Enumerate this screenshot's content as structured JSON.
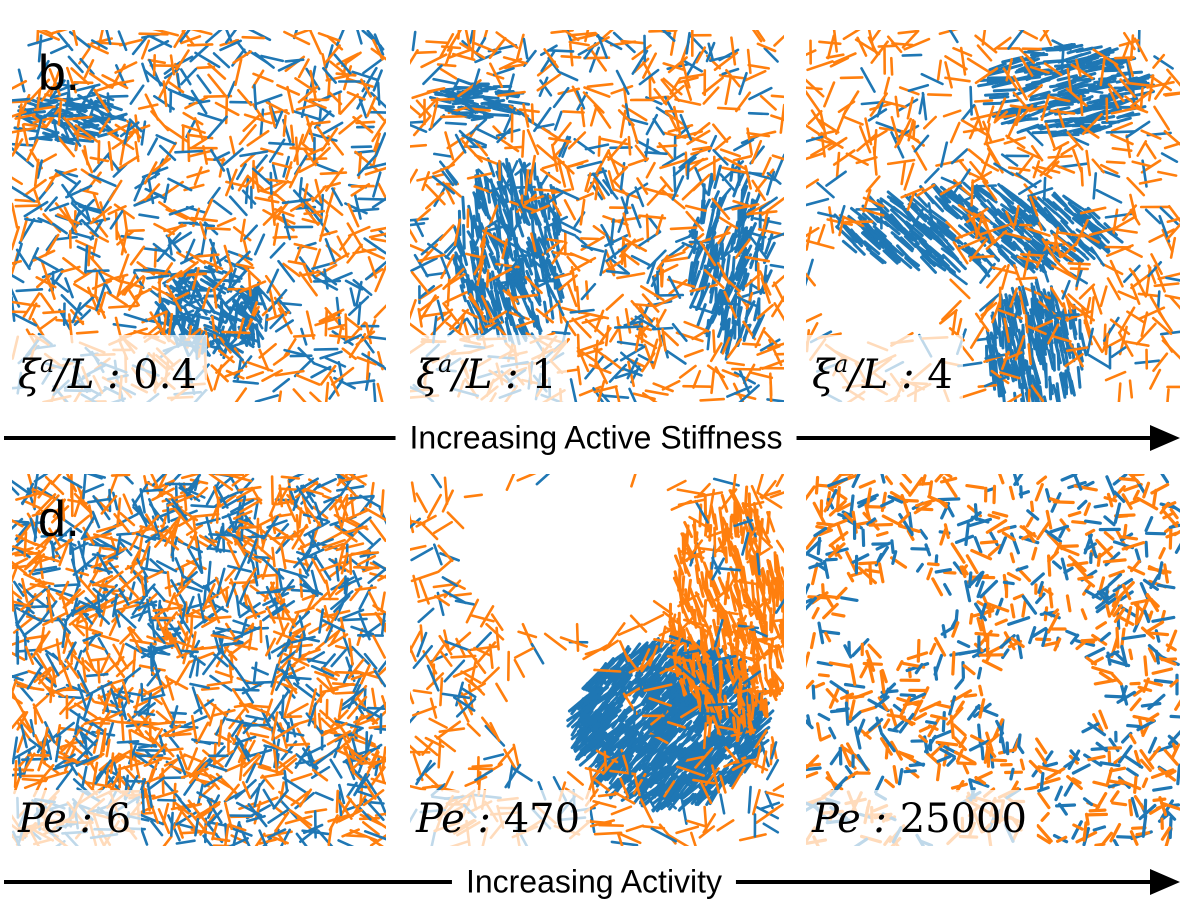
{
  "rows": [
    {
      "letter": "b.",
      "arrow_label": "Increasing Active Stiffness",
      "panels": [
        {
          "symbol": "ξ",
          "sup": "a",
          "rest": "/L : ",
          "value": "0.4",
          "pattern": "stiff-low"
        },
        {
          "symbol": "ξ",
          "sup": "a",
          "rest": "/L : ",
          "value": "1",
          "pattern": "stiff-mid"
        },
        {
          "symbol": "ξ",
          "sup": "a",
          "rest": "/L : ",
          "value": "4",
          "pattern": "stiff-high"
        }
      ]
    },
    {
      "letter": "d.",
      "arrow_label": "Increasing Activity",
      "panels": [
        {
          "symbol": "Pe",
          "rest": " : ",
          "value": "6",
          "pattern": "pe-low"
        },
        {
          "symbol": "Pe",
          "rest": " : ",
          "value": "470",
          "pattern": "pe-mid"
        },
        {
          "symbol": "Pe",
          "rest": " : ",
          "value": "25000",
          "pattern": "pe-high"
        }
      ]
    }
  ],
  "colors": {
    "orange": "#ff7f0e",
    "blue": "#1f77b4"
  }
}
